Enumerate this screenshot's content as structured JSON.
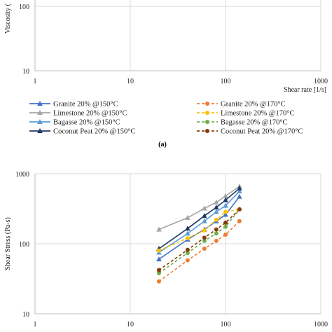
{
  "chart_data": [
    {
      "type": "line",
      "panel": "top (partial, upper part cropped)",
      "ylabel": "Viscosity (",
      "xlabel": "Shear rate [1/s]",
      "x_scale": "log",
      "y_scale": "log",
      "xlim": [
        1,
        1000
      ],
      "ylim": [
        10,
        100
      ],
      "x_ticks": [
        "1",
        "10",
        "100",
        "1000"
      ],
      "y_ticks": [
        "10",
        "100"
      ],
      "series": [],
      "caption": "(a)",
      "legend": [
        {
          "name": "Granite 20% @150°C",
          "color": "#4472c4",
          "marker": "triangle",
          "dash": "solid"
        },
        {
          "name": "Limestone 20% @150°C",
          "color": "#a5a5a5",
          "marker": "triangle",
          "dash": "solid"
        },
        {
          "name": "Bagasse 20% @150°C",
          "color": "#5b9bd5",
          "marker": "triangle",
          "dash": "solid"
        },
        {
          "name": "Coconut Peat 20% @150°C",
          "color": "#1f3864",
          "marker": "triangle",
          "dash": "solid"
        },
        {
          "name": "Granite 20% @170°C",
          "color": "#ed7d31",
          "marker": "circle",
          "dash": "dashed"
        },
        {
          "name": "Limestone 20% @170°C",
          "color": "#ffc000",
          "marker": "circle",
          "dash": "dashed"
        },
        {
          "name": "Bagasse 20% @170°C",
          "color": "#70ad47",
          "marker": "circle",
          "dash": "dashed"
        },
        {
          "name": "Coconut Peat 20% @170°C",
          "color": "#843c0c",
          "marker": "circle",
          "dash": "dashed"
        }
      ]
    },
    {
      "type": "line",
      "panel": "bottom",
      "ylabel": "Shear Stress (Pa-s)",
      "xlabel": "",
      "x_scale": "log",
      "y_scale": "log",
      "xlim": [
        1,
        1000
      ],
      "ylim": [
        10,
        1000
      ],
      "x_ticks": [
        "1",
        "10",
        "100",
        "1000"
      ],
      "y_ticks": [
        "10",
        "100",
        "1000"
      ],
      "x": [
        20,
        40,
        60,
        80,
        100,
        140
      ],
      "series": [
        {
          "name": "Granite 20% @150°C",
          "color": "#4472c4",
          "marker": "triangle",
          "dash": "solid",
          "values": [
            60,
            115,
            160,
            210,
            260,
            470
          ]
        },
        {
          "name": "Limestone 20% @150°C",
          "color": "#a5a5a5",
          "marker": "triangle",
          "dash": "solid",
          "values": [
            160,
            235,
            320,
            390,
            480,
            660
          ]
        },
        {
          "name": "Bagasse 20% @150°C",
          "color": "#5b9bd5",
          "marker": "triangle",
          "dash": "solid",
          "values": [
            75,
            140,
            210,
            285,
            350,
            560
          ]
        },
        {
          "name": "Coconut Peat 20% @150°C",
          "color": "#1f3864",
          "marker": "triangle",
          "dash": "solid",
          "values": [
            85,
            165,
            250,
            330,
            420,
            620
          ]
        },
        {
          "name": "Granite 20% @170°C",
          "color": "#ed7d31",
          "marker": "circle",
          "dash": "dashed",
          "values": [
            29,
            58,
            85,
            110,
            135,
            210
          ]
        },
        {
          "name": "Limestone 20% @170°C",
          "color": "#ffc000",
          "marker": "circle",
          "dash": "dashed",
          "values": [
            80,
            120,
            155,
            220,
            285,
            310
          ]
        },
        {
          "name": "Bagasse 20% @170°C",
          "color": "#70ad47",
          "marker": "circle",
          "dash": "dashed",
          "values": [
            38,
            74,
            110,
            140,
            175,
            310
          ]
        },
        {
          "name": "Coconut Peat 20% @170°C",
          "color": "#843c0c",
          "marker": "circle",
          "dash": "dashed",
          "values": [
            42,
            82,
            122,
            160,
            200,
            310
          ]
        }
      ]
    }
  ]
}
